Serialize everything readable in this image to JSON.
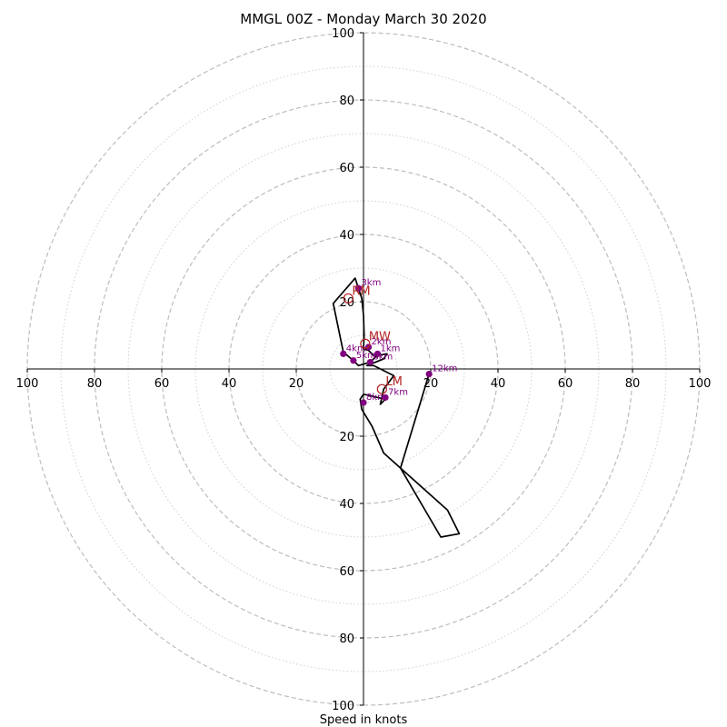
{
  "chart_data": {
    "type": "hodograph",
    "title": "MMGL 00Z - Monday March 30 2020",
    "xlabel": "Speed in knots",
    "xlim": [
      -100,
      100
    ],
    "ylim": [
      -100,
      100
    ],
    "major_rings": [
      20,
      40,
      60,
      80,
      100
    ],
    "minor_rings": [
      10,
      30,
      50,
      70,
      90
    ],
    "x_ticks": [
      {
        "value": -100,
        "label": "100"
      },
      {
        "value": -80,
        "label": "80"
      },
      {
        "value": -60,
        "label": "60"
      },
      {
        "value": -40,
        "label": "40"
      },
      {
        "value": -20,
        "label": "20"
      },
      {
        "value": 20,
        "label": "20"
      },
      {
        "value": 40,
        "label": "40"
      },
      {
        "value": 60,
        "label": "60"
      },
      {
        "value": 80,
        "label": "80"
      },
      {
        "value": 100,
        "label": "100"
      }
    ],
    "y_ticks": [
      {
        "value": 100,
        "label": "100"
      },
      {
        "value": 80,
        "label": "80"
      },
      {
        "value": 60,
        "label": "60"
      },
      {
        "value": 40,
        "label": "40"
      },
      {
        "value": 20,
        "label": "20"
      },
      {
        "value": -20,
        "label": "20"
      },
      {
        "value": -40,
        "label": "40"
      },
      {
        "value": -60,
        "label": "60"
      },
      {
        "value": -80,
        "label": "80"
      },
      {
        "value": -100,
        "label": "100"
      }
    ],
    "trace": {
      "color": "#000000",
      "points": [
        [
          4.2,
          3.5
        ],
        [
          3.0,
          4.0
        ],
        [
          1.5,
          5.5
        ],
        [
          0.0,
          6.0
        ],
        [
          0.2,
          10.0
        ],
        [
          0.0,
          16.0
        ],
        [
          -0.5,
          21.0
        ],
        [
          -1.5,
          24.0
        ],
        [
          -2.5,
          27.0
        ],
        [
          -9.0,
          19.5
        ],
        [
          -6.0,
          5.0
        ],
        [
          -3.0,
          2.5
        ],
        [
          -1.5,
          1.0
        ],
        [
          2.0,
          2.0
        ],
        [
          4.0,
          4.0
        ],
        [
          7.0,
          4.5
        ],
        [
          6.0,
          3.0
        ],
        [
          1.0,
          1.0
        ],
        [
          3.0,
          1.0
        ],
        [
          9.0,
          -2.0
        ],
        [
          6.0,
          -6.0
        ],
        [
          5.0,
          -10.5
        ],
        [
          6.5,
          -9.0
        ],
        [
          0.0,
          -7.5
        ],
        [
          -1.0,
          -9.0
        ],
        [
          -0.5,
          -12.0
        ],
        [
          2.5,
          -17.0
        ],
        [
          6.0,
          -25.0
        ],
        [
          25.0,
          -42.0
        ],
        [
          28.5,
          -49.0
        ],
        [
          23.0,
          -50.0
        ],
        [
          11.0,
          -29.5
        ],
        [
          19.5,
          -1.5
        ]
      ]
    },
    "markers": [
      {
        "label": "1km",
        "x": 4.2,
        "y": 4.5
      },
      {
        "label": "2km",
        "x": 1.5,
        "y": 6.5
      },
      {
        "label": "3km",
        "x": -1.5,
        "y": 24.0
      },
      {
        "label": "4km",
        "x": -6.0,
        "y": 4.5
      },
      {
        "label": "5km",
        "x": -3.0,
        "y": 2.5
      },
      {
        "label": "6km",
        "x": 2.0,
        "y": 2.0
      },
      {
        "label": "7km",
        "x": 6.5,
        "y": -8.5
      },
      {
        "label": "8km",
        "x": 0.0,
        "y": -10.0
      },
      {
        "label": "12km",
        "x": 19.5,
        "y": -1.5
      }
    ],
    "marker_color": "#800080",
    "storm_motion": [
      {
        "label": "RM",
        "x": -4.5,
        "y": 21.0
      },
      {
        "label": "MW",
        "x": 0.5,
        "y": 7.5
      },
      {
        "label": "LM",
        "x": 5.5,
        "y": -6.0
      }
    ],
    "storm_motion_color": "#b22222"
  }
}
